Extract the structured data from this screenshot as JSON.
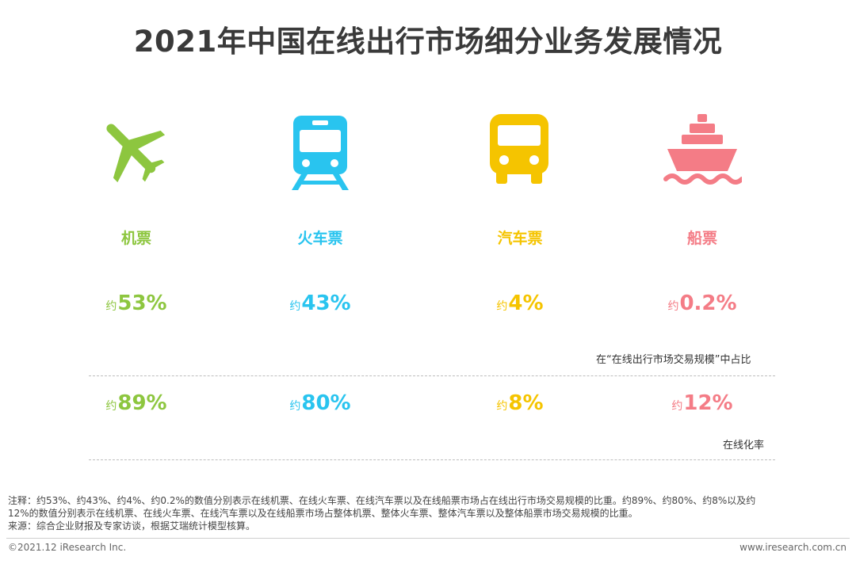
{
  "title": "2021年中国在线出行市场细分业务发展情况",
  "chart_data": {
    "type": "table",
    "categories": [
      "机票",
      "火车票",
      "汽车票",
      "船票"
    ],
    "series": [
      {
        "name": "在“在线出行市场交易规模”中占比",
        "values": [
          53,
          43,
          4,
          0.2
        ],
        "labels": [
          "53%",
          "43%",
          "4%",
          "0.2%"
        ],
        "prefix": "约"
      },
      {
        "name": "在线化率",
        "values": [
          89,
          80,
          8,
          12
        ],
        "labels": [
          "89%",
          "80%",
          "8%",
          "12%"
        ],
        "prefix": "约"
      }
    ],
    "colors": [
      "#8dc63f",
      "#29c4ef",
      "#f5c400",
      "#f47c86"
    ],
    "icons": [
      "airplane-icon",
      "train-icon",
      "bus-icon",
      "ship-icon"
    ]
  },
  "notes": {
    "line1": "注释：约53%、约43%、约4%、约0.2%的数值分别表示在线机票、在线火车票、在线汽车票以及在线船票市场占在线出行市场交易规模的比重。约89%、约80%、约8%以及约",
    "line2": "12%的数值分别表示在线机票、在线火车票、在线汽车票以及在线船票市场占整体机票、整体火车票、整体汽车票以及整体船票市场交易规模的比重。",
    "line3": "来源：综合企业财报及专家访谈，根据艾瑞统计模型核算。"
  },
  "footer": {
    "copyright": "©2021.12 iResearch Inc.",
    "website": "www.iresearch.com.cn"
  }
}
